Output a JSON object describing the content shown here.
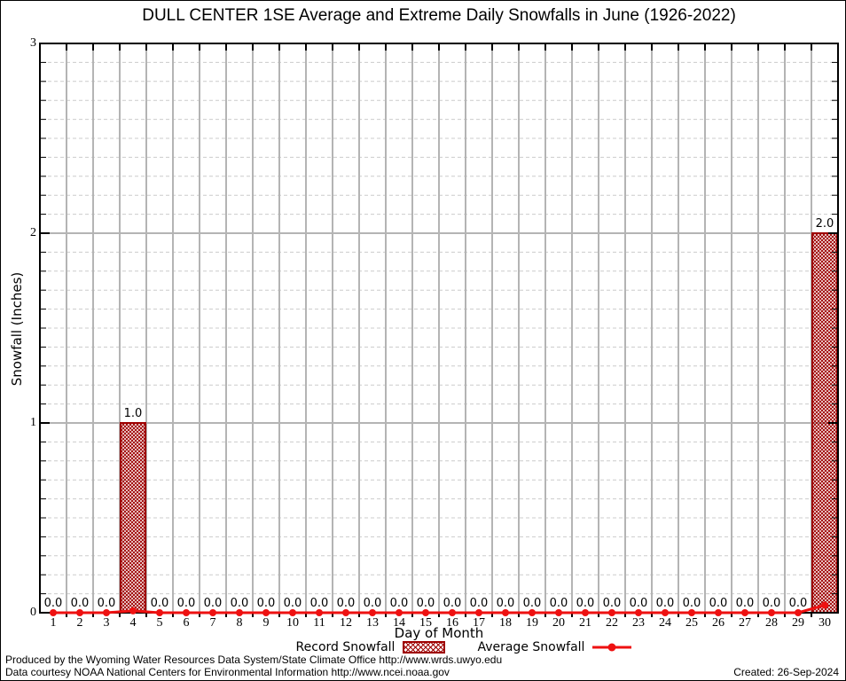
{
  "title": "DULL CENTER 1SE Average and Extreme Daily Snowfalls in June (1926-2022)",
  "chart_data": {
    "type": "bar",
    "title": "DULL CENTER 1SE Average and Extreme Daily Snowfalls in June (1926-2022)",
    "xlabel": "Day of Month",
    "ylabel": "Snowfall (Inches)",
    "x": [
      1,
      2,
      3,
      4,
      5,
      6,
      7,
      8,
      9,
      10,
      11,
      12,
      13,
      14,
      15,
      16,
      17,
      18,
      19,
      20,
      21,
      22,
      23,
      24,
      25,
      26,
      27,
      28,
      29,
      30
    ],
    "ylim": [
      0,
      3
    ],
    "y_major_ticks": [
      0,
      1,
      2,
      3
    ],
    "y_minor_step": 0.1,
    "grid": true,
    "legend_position": "bottom",
    "series": [
      {
        "name": "Record Snowfall",
        "type": "bar",
        "style": "crosshatch",
        "color": "#9e0000",
        "values": [
          0.0,
          0.0,
          0.0,
          1.0,
          0.0,
          0.0,
          0.0,
          0.0,
          0.0,
          0.0,
          0.0,
          0.0,
          0.0,
          0.0,
          0.0,
          0.0,
          0.0,
          0.0,
          0.0,
          0.0,
          0.0,
          0.0,
          0.0,
          0.0,
          0.0,
          0.0,
          0.0,
          0.0,
          0.0,
          2.0
        ]
      },
      {
        "name": "Average Snowfall",
        "type": "line",
        "color": "#ee1111",
        "values": [
          0,
          0,
          0,
          0.01,
          0,
          0,
          0,
          0,
          0,
          0,
          0,
          0,
          0,
          0,
          0,
          0,
          0,
          0,
          0,
          0,
          0,
          0,
          0,
          0,
          0,
          0,
          0,
          0,
          0,
          0.04
        ]
      }
    ]
  },
  "footer": {
    "line1": "Produced by the Wyoming Water Resources Data System/State Climate Office http://www.wrds.uwyo.edu",
    "line2": "Data courtesy NOAA National Centers for Environmental Information http://www.ncei.noaa.gov",
    "created": "Created: 26-Sep-2024"
  }
}
